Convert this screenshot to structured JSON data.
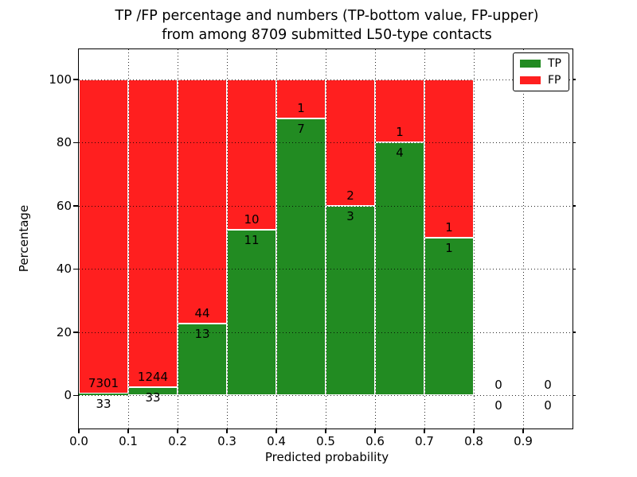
{
  "chart_data": {
    "type": "bar",
    "stacked": true,
    "title_line1": "TP /FP percentage and numbers (TP-bottom value, FP-upper)",
    "title_line2": "from among 8709 submitted L50-type contacts",
    "xlabel": "Predicted probability",
    "ylabel": "Percentage",
    "total_contacts": 8709,
    "categories": [
      0.0,
      0.1,
      0.2,
      0.3,
      0.4,
      0.5,
      0.6,
      0.7,
      0.8,
      0.9
    ],
    "bin_width": 0.1,
    "series": [
      {
        "name": "TP",
        "color": "#228b22",
        "counts": [
          33,
          33,
          13,
          11,
          7,
          3,
          4,
          1,
          0,
          0
        ]
      },
      {
        "name": "FP",
        "color": "#ff1f1f",
        "counts": [
          7301,
          1244,
          44,
          10,
          1,
          2,
          1,
          1,
          0,
          0
        ]
      }
    ],
    "percent_tp": [
      0.45,
      2.58,
      22.81,
      52.38,
      87.5,
      60.0,
      80.0,
      50.0,
      0,
      0
    ],
    "x_ticks": [
      "0.0",
      "0.1",
      "0.2",
      "0.3",
      "0.4",
      "0.5",
      "0.6",
      "0.7",
      "0.8",
      "0.9"
    ],
    "y_ticks": [
      0,
      20,
      40,
      60,
      80,
      100
    ],
    "xlim": [
      0.0,
      1.0
    ],
    "ylim": [
      -10.5,
      109.5
    ],
    "grid": true,
    "grid_style": "dotted",
    "grid_above_bars": true,
    "bar_edge_color": "#ffffff",
    "legend": {
      "position": "upper right",
      "entries": [
        {
          "label": "TP",
          "color": "#228b22"
        },
        {
          "label": "FP",
          "color": "#ff1f1f"
        }
      ]
    }
  }
}
